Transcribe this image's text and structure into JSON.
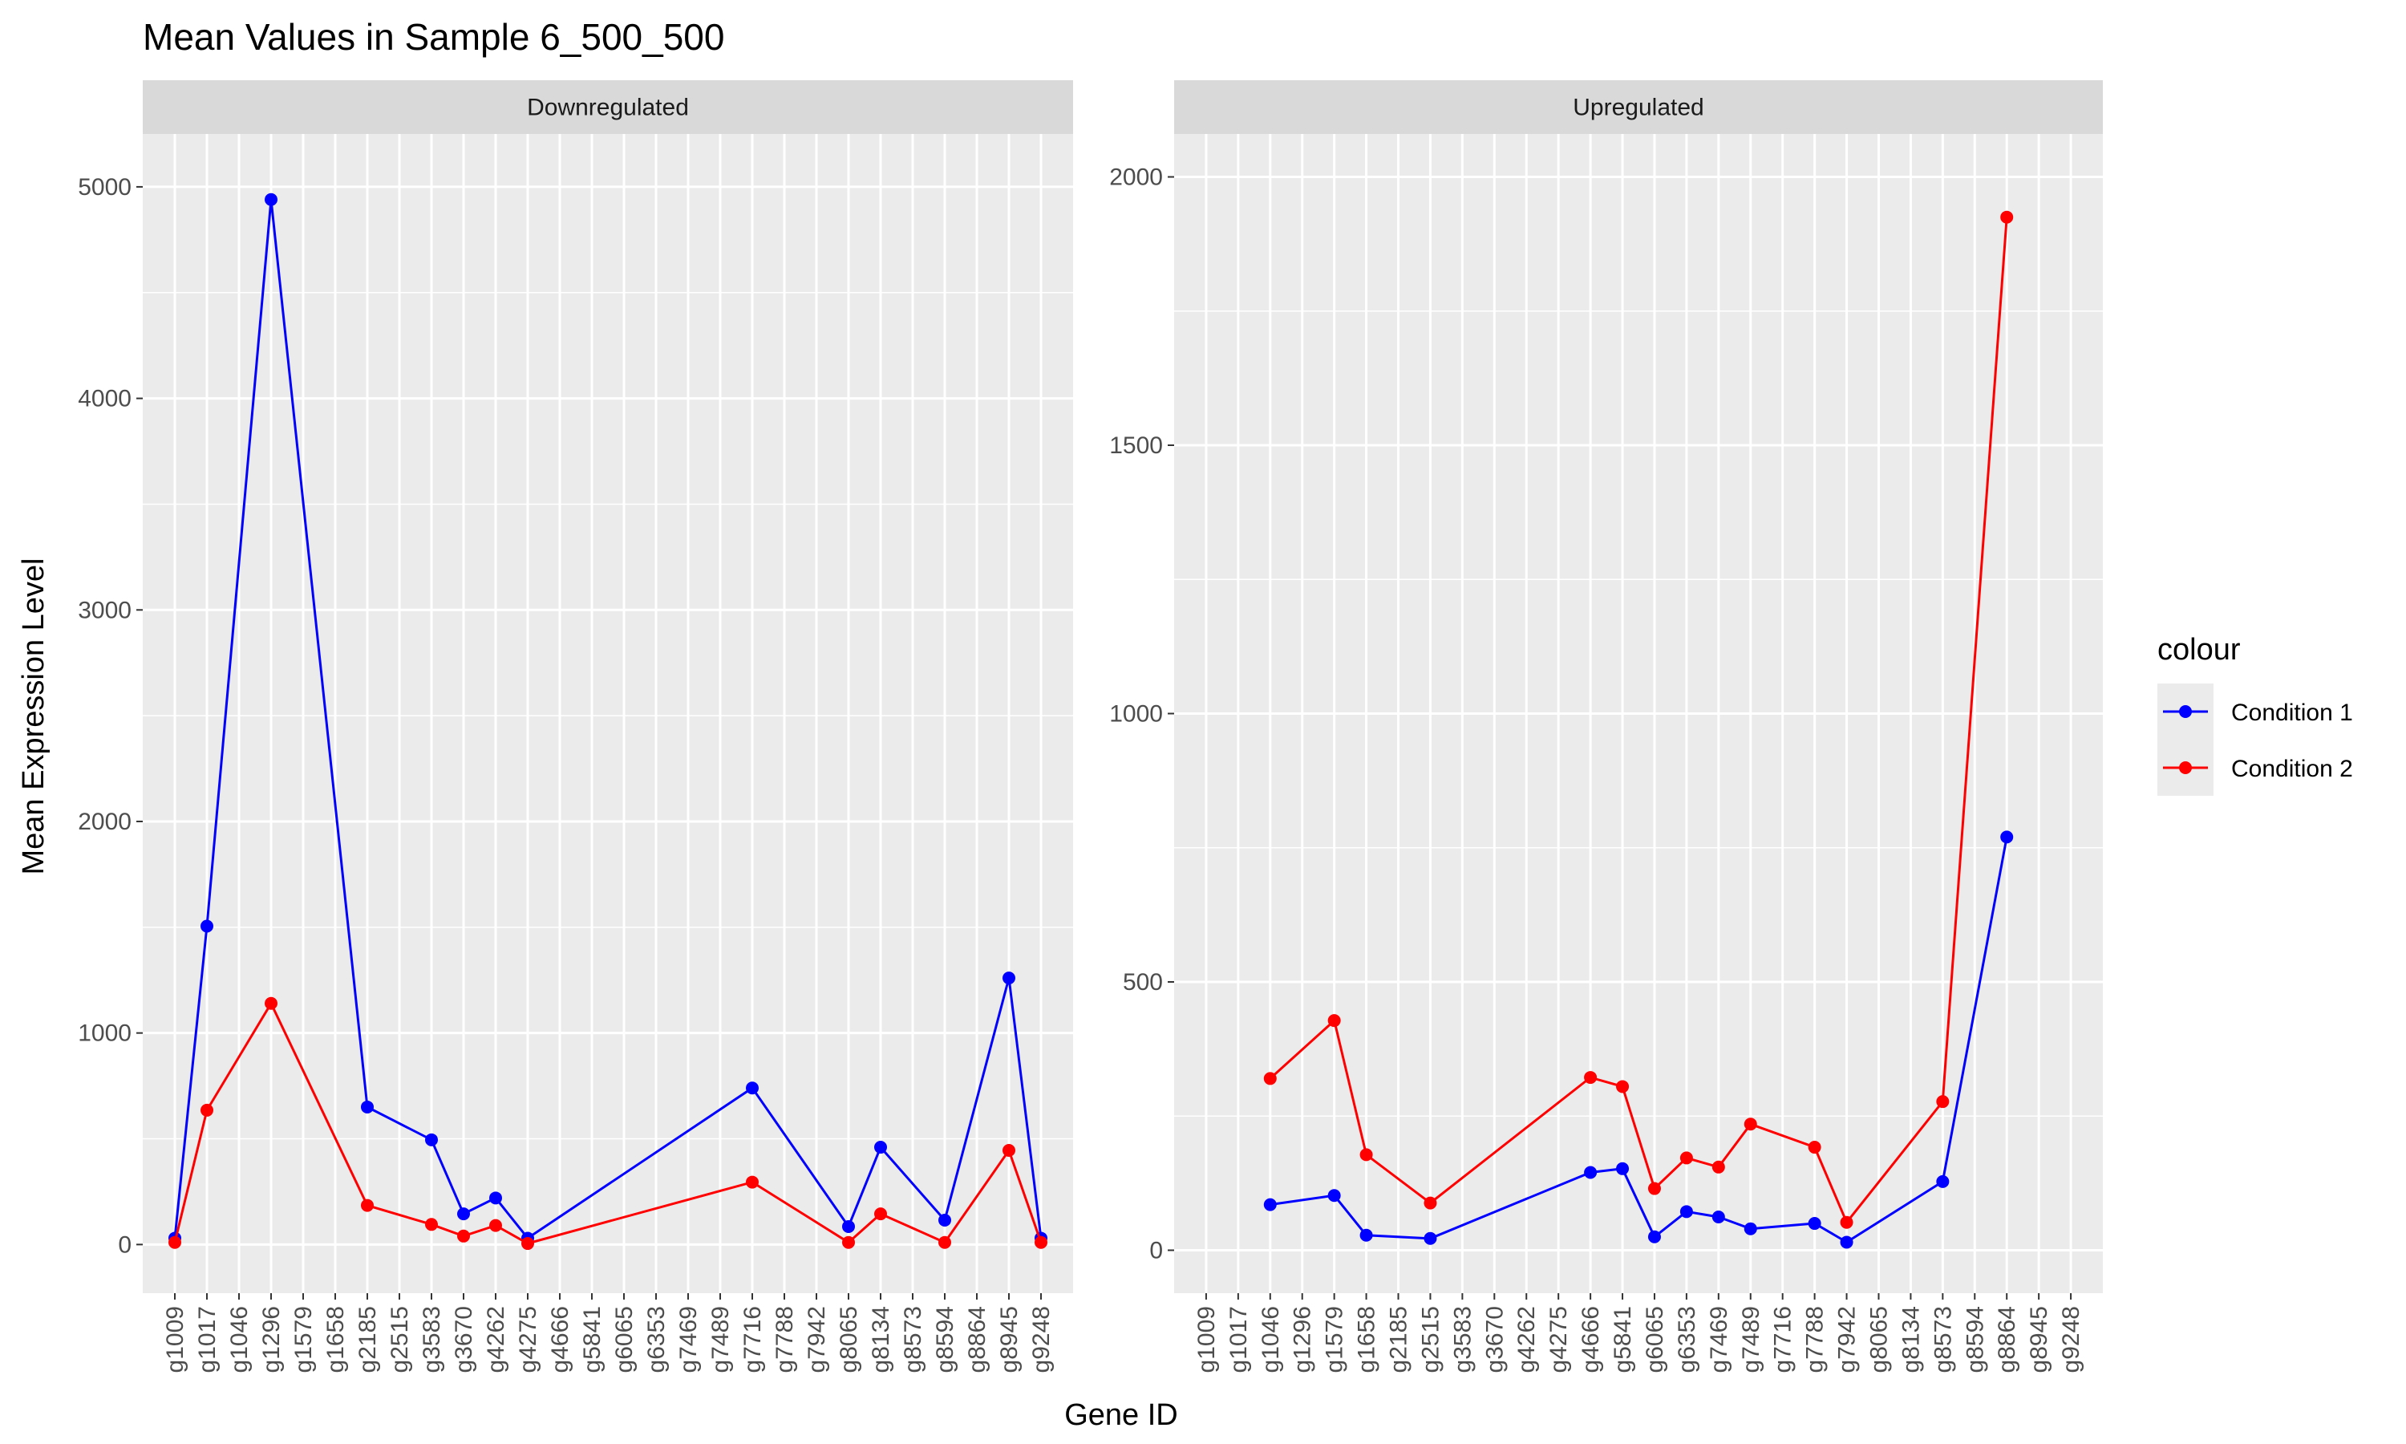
{
  "chart_data": {
    "type": "line",
    "title": "Mean Values in Sample 6_500_500",
    "xlabel": "Gene ID",
    "ylabel": "Mean Expression Level",
    "categories": [
      "g1009",
      "g1017",
      "g1046",
      "g1296",
      "g1579",
      "g1658",
      "g2185",
      "g2515",
      "g3583",
      "g3670",
      "g4262",
      "g4275",
      "g4666",
      "g5841",
      "g6065",
      "g6353",
      "g7469",
      "g7489",
      "g7716",
      "g7788",
      "g7942",
      "g8065",
      "g8134",
      "g8573",
      "g8594",
      "g8864",
      "g8945",
      "g9248"
    ],
    "grid": true,
    "legend": {
      "title": "colour",
      "position": "right",
      "entries": [
        {
          "name": "Condition 1",
          "color": "#0000FF"
        },
        {
          "name": "Condition 2",
          "color": "#FF0000"
        }
      ]
    },
    "panels": [
      {
        "name": "Downregulated",
        "ylim": [
          -230,
          5250
        ],
        "yticks": [
          0,
          1000,
          2000,
          3000,
          4000,
          5000
        ],
        "series": [
          {
            "name": "Condition 1",
            "color": "#0000FF",
            "points": [
              [
                "g1009",
                30
              ],
              [
                "g1017",
                1505
              ],
              [
                "g1296",
                4940
              ],
              [
                "g2185",
                650
              ],
              [
                "g3583",
                495
              ],
              [
                "g3670",
                145
              ],
              [
                "g4262",
                220
              ],
              [
                "g4275",
                30
              ],
              [
                "g7716",
                740
              ],
              [
                "g8065",
                85
              ],
              [
                "g8134",
                460
              ],
              [
                "g8594",
                115
              ],
              [
                "g8945",
                1260
              ],
              [
                "g9248",
                30
              ]
            ]
          },
          {
            "name": "Condition 2",
            "color": "#FF0000",
            "points": [
              [
                "g1009",
                10
              ],
              [
                "g1017",
                635
              ],
              [
                "g1296",
                1140
              ],
              [
                "g2185",
                185
              ],
              [
                "g3583",
                95
              ],
              [
                "g3670",
                40
              ],
              [
                "g4262",
                90
              ],
              [
                "g4275",
                5
              ],
              [
                "g7716",
                295
              ],
              [
                "g8065",
                10
              ],
              [
                "g8134",
                145
              ],
              [
                "g8594",
                10
              ],
              [
                "g8945",
                445
              ],
              [
                "g9248",
                10
              ]
            ]
          }
        ]
      },
      {
        "name": "Upregulated",
        "ylim": [
          -80,
          2080
        ],
        "yticks": [
          0,
          500,
          1000,
          1500,
          2000
        ],
        "series": [
          {
            "name": "Condition 1",
            "color": "#0000FF",
            "points": [
              [
                "g1046",
                85
              ],
              [
                "g1579",
                102
              ],
              [
                "g1658",
                28
              ],
              [
                "g2515",
                22
              ],
              [
                "g4666",
                145
              ],
              [
                "g5841",
                152
              ],
              [
                "g6065",
                25
              ],
              [
                "g6353",
                72
              ],
              [
                "g7469",
                62
              ],
              [
                "g7489",
                40
              ],
              [
                "g7788",
                50
              ],
              [
                "g7942",
                15
              ],
              [
                "g8573",
                128
              ],
              [
                "g8864",
                770
              ]
            ]
          },
          {
            "name": "Condition 2",
            "color": "#FF0000",
            "points": [
              [
                "g1046",
                320
              ],
              [
                "g1579",
                428
              ],
              [
                "g1658",
                178
              ],
              [
                "g2515",
                88
              ],
              [
                "g4666",
                322
              ],
              [
                "g5841",
                305
              ],
              [
                "g6065",
                115
              ],
              [
                "g6353",
                172
              ],
              [
                "g7469",
                155
              ],
              [
                "g7489",
                235
              ],
              [
                "g7788",
                192
              ],
              [
                "g7942",
                52
              ],
              [
                "g8573",
                277
              ],
              [
                "g8864",
                1925
              ]
            ]
          }
        ]
      }
    ]
  }
}
